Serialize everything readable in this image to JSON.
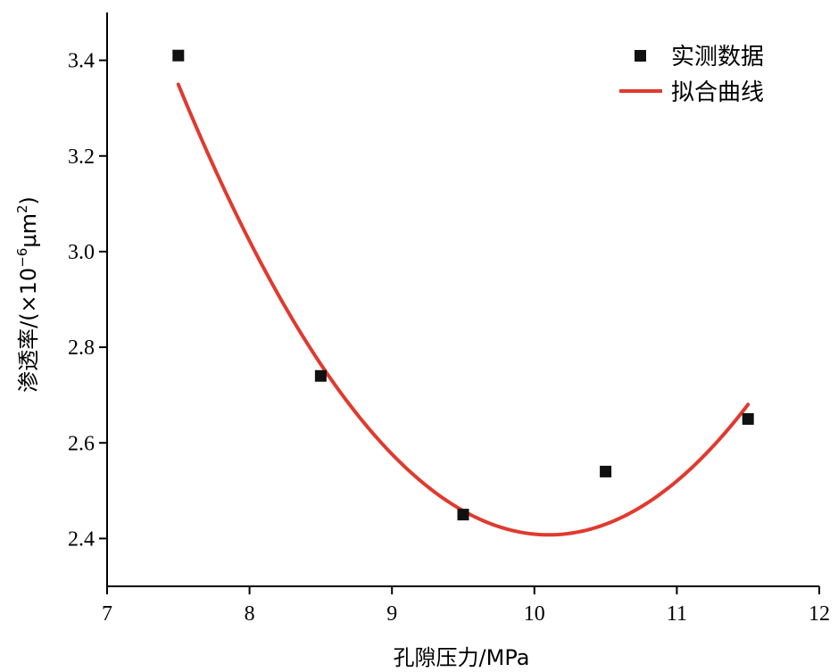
{
  "chart_data": {
    "type": "scatter",
    "title": "",
    "xlabel": "孔隙压力/MPa",
    "ylabel_main": "渗透率/(×10",
    "ylabel_exp": "−6",
    "ylabel_unit": "μm",
    "ylabel_sq": "2",
    "ylabel_close": ")",
    "xlim": [
      7,
      12
    ],
    "ylim": [
      2.3,
      3.5
    ],
    "xticks": [
      "7",
      "8",
      "9",
      "10",
      "11",
      "12"
    ],
    "yticks": [
      "2.4",
      "2.6",
      "2.8",
      "3.0",
      "3.2",
      "3.4"
    ],
    "grid": false,
    "legend_position": "top-right",
    "series": [
      {
        "name": "实测数据",
        "kind": "scatter",
        "marker": "square",
        "color": "#111111",
        "x": [
          7.5,
          8.5,
          9.5,
          10.5,
          11.5
        ],
        "y": [
          3.41,
          2.74,
          2.45,
          2.54,
          2.65
        ]
      },
      {
        "name": "拟合曲线",
        "kind": "line",
        "color": "#e03a2f",
        "fit": "quadratic",
        "x_range": [
          7.5,
          11.5
        ],
        "x": [
          7.5,
          8.0,
          8.5,
          9.0,
          9.5,
          10.0,
          10.5,
          11.0,
          11.5
        ],
        "y": [
          3.35,
          3.02,
          2.77,
          2.57,
          2.46,
          2.41,
          2.43,
          2.52,
          2.68
        ]
      }
    ]
  }
}
